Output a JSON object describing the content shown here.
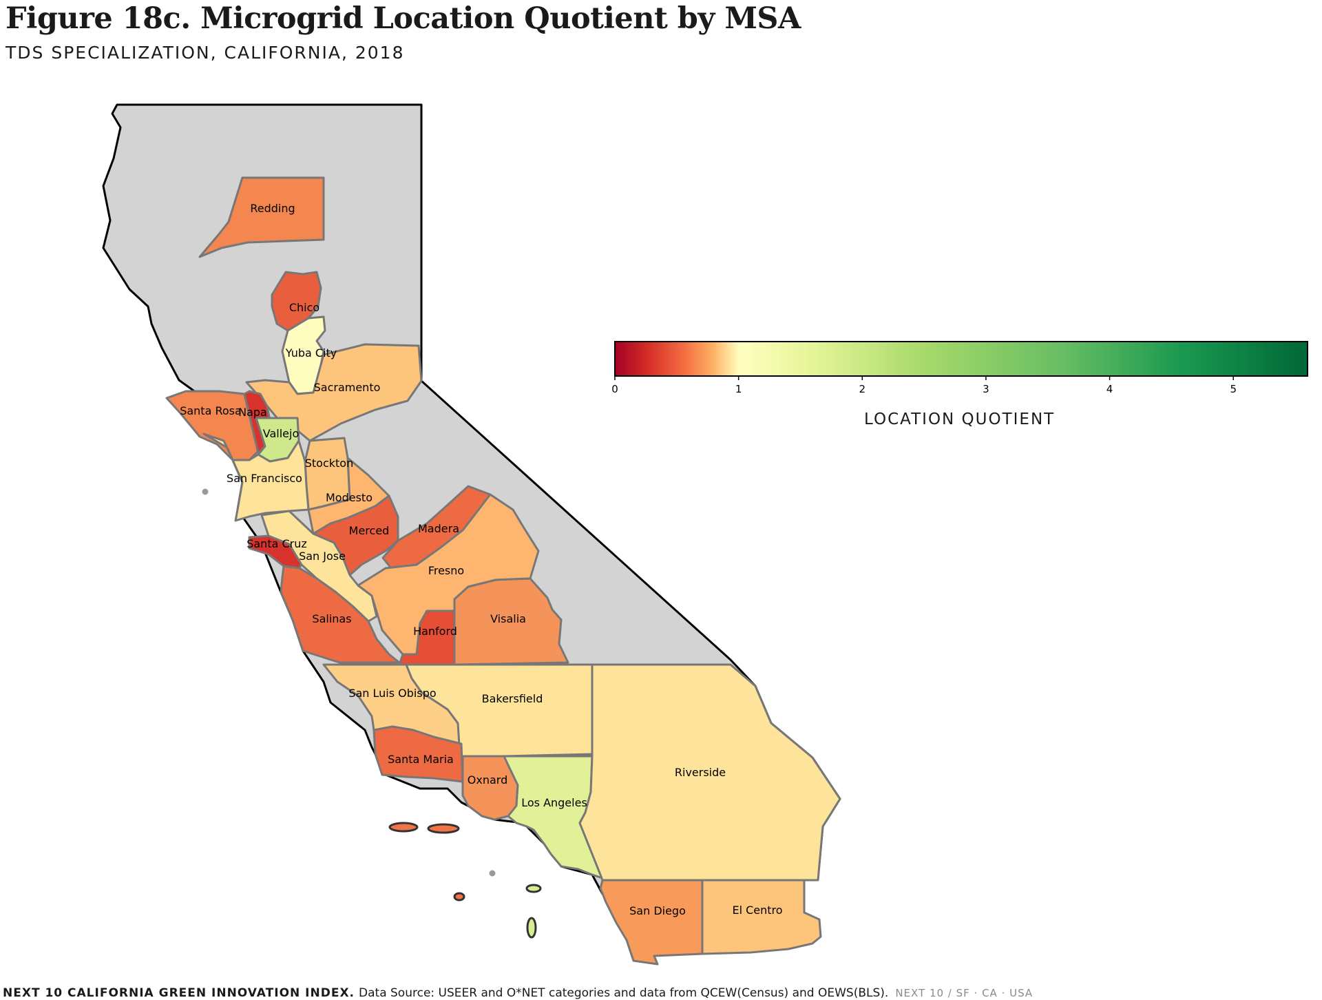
{
  "title": "Figure 18c. Microgrid Location Quotient by MSA",
  "subtitle": "TDS SPECIALIZATION, CALIFORNIA, 2018",
  "legend": {
    "title": "LOCATION QUOTIENT",
    "ticks": [
      "0",
      "1",
      "2",
      "3",
      "4",
      "5"
    ],
    "range": [
      0,
      5.6
    ]
  },
  "regions": {
    "redding": "Redding",
    "chico": "Chico",
    "yuba_city": "Yuba City",
    "sacramento": "Sacramento",
    "santa_rosa": "Santa Rosa",
    "napa": "Napa",
    "vallejo": "Vallejo",
    "stockton": "Stockton",
    "san_francisco": "San Francisco",
    "modesto": "Modesto",
    "merced": "Merced",
    "madera": "Madera",
    "santa_cruz": "Santa Cruz",
    "san_jose": "San Jose",
    "fresno": "Fresno",
    "salinas": "Salinas",
    "hanford": "Hanford",
    "visalia": "Visalia",
    "san_luis_obispo": "San Luis Obispo",
    "bakersfield": "Bakersfield",
    "santa_maria": "Santa Maria",
    "oxnard": "Oxnard",
    "los_angeles": "Los Angeles",
    "riverside": "Riverside",
    "san_diego": "San Diego",
    "el_centro": "El Centro"
  },
  "colors": {
    "no_data": "#d3d3d3",
    "border": "#777777",
    "state_outline": "#000000",
    "very_low": "#d7322b",
    "low": "#e95f3e",
    "low_mid": "#f4a16a",
    "mid": "#fdc47c",
    "near_one": "#fee39a",
    "one": "#fffdc0",
    "above_one": "#e2f198",
    "vallejo": "#d0e88c"
  },
  "footer": {
    "brand": "NEXT 10 CALIFORNIA GREEN INNOVATION INDEX.",
    "source": "Data Source: USEER and O*NET categories and data from QCEW(Census) and OEWS(BLS).",
    "tag": "NEXT 10 / SF · CA · USA"
  }
}
